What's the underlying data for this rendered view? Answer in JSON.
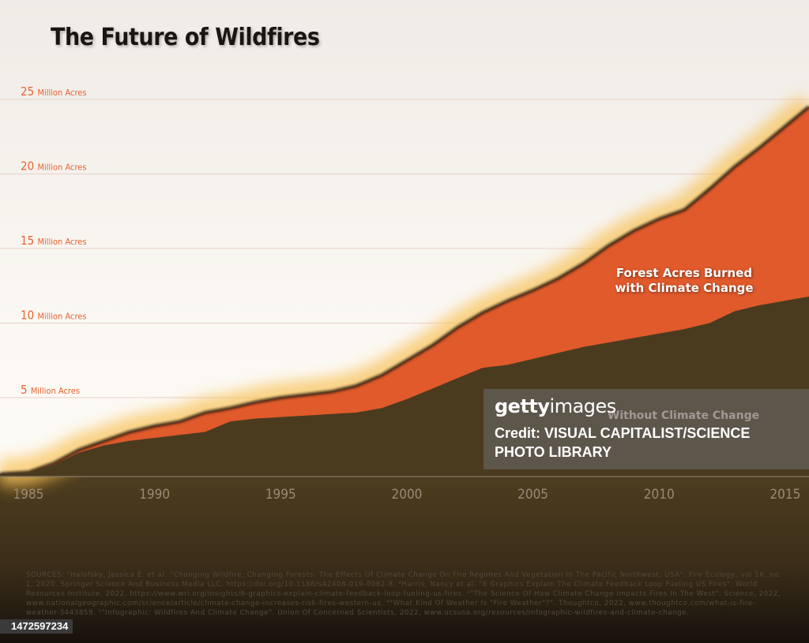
{
  "title": "The Future of Wildfires",
  "chart_data": {
    "type": "area",
    "title": "The Future of Wildfires",
    "x": [
      1985,
      1986,
      1987,
      1988,
      1989,
      1990,
      1991,
      1992,
      1993,
      1994,
      1995,
      1996,
      1997,
      1998,
      1999,
      2000,
      2001,
      2002,
      2003,
      2004,
      2005,
      2006,
      2007,
      2008,
      2009,
      2010,
      2011,
      2012,
      2013,
      2014,
      2015
    ],
    "series": [
      {
        "name": "Forest Acres Burned with Climate Change",
        "color": "#e05a2b",
        "values": [
          0,
          0.6,
          1.5,
          2.1,
          2.7,
          3.1,
          3.4,
          4.0,
          4.3,
          4.7,
          5.0,
          5.2,
          5.4,
          5.8,
          6.5,
          7.5,
          8.5,
          9.7,
          10.7,
          11.5,
          12.2,
          13.0,
          14.0,
          15.2,
          16.2,
          17.0,
          17.6,
          19.0,
          20.5,
          21.8,
          23.2
        ]
      },
      {
        "name": "Without Climate Change",
        "color": "#4a3b1f",
        "values": [
          0,
          0.5,
          1.3,
          1.8,
          2.1,
          2.3,
          2.5,
          2.7,
          3.4,
          3.6,
          3.7,
          3.8,
          3.9,
          4.0,
          4.3,
          4.9,
          5.6,
          6.3,
          7.0,
          7.2,
          7.6,
          8.0,
          8.4,
          8.7,
          9.0,
          9.3,
          9.6,
          10.0,
          10.8,
          11.2,
          11.5
        ]
      }
    ],
    "series_labels": [
      "Forest Acres Burned with Climate Change",
      "Without Climate Change"
    ],
    "x_ticks": [
      "1985",
      "1990",
      "1995",
      "2000",
      "2005",
      "2010",
      "2015"
    ],
    "y_ticks": [
      {
        "value": 5,
        "num": "5",
        "unit": "Million Acres"
      },
      {
        "value": 10,
        "num": "10",
        "unit": "Million Acres"
      },
      {
        "value": 15,
        "num": "15",
        "unit": "Million Acres"
      },
      {
        "value": 20,
        "num": "20",
        "unit": "Million Acres"
      },
      {
        "value": 25,
        "num": "25",
        "unit": "Million Acres"
      }
    ],
    "ylim": [
      0,
      25
    ],
    "xlim": [
      1985,
      2016
    ],
    "grid": true,
    "accent_color": "#e8622f"
  },
  "sources": "SOURCES: ¹Halofsky, Jessica E. et al. \"Changing Wildfire, Changing Forests: The Effects Of Climate Change On Fire Regimes And Vegetation In The Pacific Northwest, USA\". Fire Ecology, vol 16, no. 1, 2020. Springer Science And Business Media LLC, https://doi.org/10.1186/s42408-019-0062-8. ²Harris, Nancy et al. \"6 Graphics Explain The Climate Feedback Loop Fueling US Fires\". World Resources Institute, 2022, https://www.wri.org/insights/6-graphics-explain-climate-feedback-loop-fueling-us-fires. ³\"The Science Of How Climate Change Impacts Fires In The West\". Science, 2022, www.nationalgeographic.com/science/article/climate-change-increases-risk-fires-western-us. ⁴\"What Kind Of Weather Is \"Fire Weather\"?\". Thoughtco, 2022, www.thoughtco.com/what-is-fire-weather-3443859. ⁵\"Infographic: Wildfires And Climate Change\". Union Of Concerned Scientists, 2022, www.ucsusa.org/resources/infographic-wildfires-and-climate-change.",
  "watermark": {
    "brand_bold": "getty",
    "brand_light": "images",
    "credit": "Credit: VISUAL CAPITALIST/SCIENCE PHOTO LIBRARY"
  },
  "image_id": "1472597234"
}
